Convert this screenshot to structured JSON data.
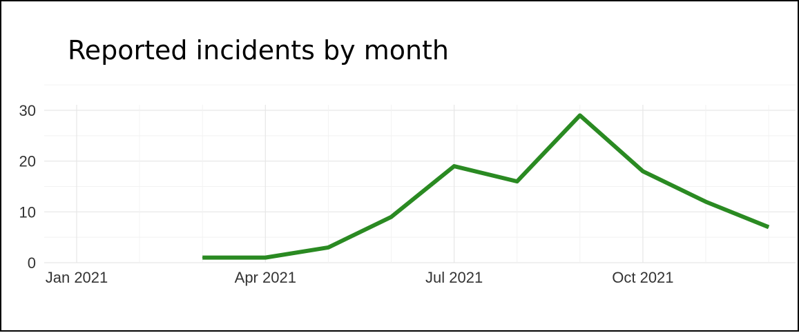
{
  "chart_data": {
    "type": "line",
    "title": "Reported incidents by month",
    "xlabel": "",
    "ylabel": "",
    "x_ticks": [
      "Jan 2021",
      "Apr 2021",
      "Jul 2021",
      "Oct 2021"
    ],
    "y_ticks": [
      "0",
      "10",
      "20",
      "30"
    ],
    "ylim": [
      0,
      30
    ],
    "xlim": [
      "2021-01",
      "2021-12"
    ],
    "grid": true,
    "color": "#2a8a22",
    "series": [
      {
        "x": [
          "2021-03",
          "2021-04",
          "2021-05",
          "2021-06",
          "2021-07",
          "2021-08",
          "2021-09",
          "2021-10",
          "2021-11",
          "2021-12"
        ],
        "values": [
          1,
          1,
          3,
          9,
          19,
          16,
          29,
          18,
          12,
          7
        ]
      }
    ]
  }
}
